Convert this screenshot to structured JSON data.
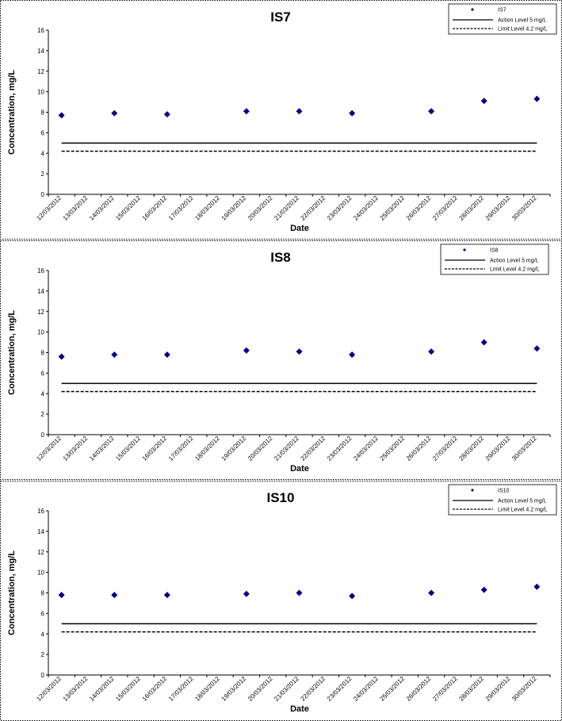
{
  "chart_data": [
    {
      "type": "scatter",
      "title": "IS7",
      "xlabel": "Date",
      "ylabel": "Concentration, mg/L",
      "ylim": [
        0,
        16
      ],
      "yticks": [
        0,
        2,
        4,
        6,
        8,
        10,
        12,
        14,
        16
      ],
      "categories": [
        "12/03/2012",
        "13/03/2012",
        "14/03/2012",
        "15/03/2012",
        "16/03/2012",
        "17/03/2012",
        "18/03/2012",
        "19/03/2012",
        "20/03/2012",
        "21/03/2012",
        "22/03/2012",
        "23/03/2012",
        "24/03/2012",
        "25/03/2012",
        "26/03/2012",
        "27/03/2012",
        "28/03/2012",
        "29/03/2012",
        "30/03/2012"
      ],
      "series": [
        {
          "name": "IS7",
          "marker": "diamond",
          "color": "#000080",
          "points": [
            [
              "12/03/2012",
              7.7
            ],
            [
              "14/03/2012",
              7.9
            ],
            [
              "16/03/2012",
              7.8
            ],
            [
              "19/03/2012",
              8.1
            ],
            [
              "21/03/2012",
              8.1
            ],
            [
              "23/03/2012",
              7.9
            ],
            [
              "26/03/2012",
              8.1
            ],
            [
              "28/03/2012",
              9.1
            ],
            [
              "30/03/2012",
              9.3
            ]
          ]
        }
      ],
      "reference_lines": [
        {
          "name": "Action Level 5 mg/L",
          "value": 5,
          "style": "solid",
          "color": "#000000"
        },
        {
          "name": "Limit Level 4.2 mg/L",
          "value": 4.2,
          "style": "dashed",
          "color": "#000000"
        }
      ],
      "legend": "top-right",
      "grid": false
    },
    {
      "type": "scatter",
      "title": "IS8",
      "xlabel": "Date",
      "ylabel": "Concentration, mg/L",
      "ylim": [
        0,
        16
      ],
      "yticks": [
        0,
        2,
        4,
        6,
        8,
        10,
        12,
        14,
        16
      ],
      "categories": [
        "12/03/2012",
        "13/03/2012",
        "14/03/2012",
        "15/03/2012",
        "16/03/2012",
        "17/03/2012",
        "18/03/2012",
        "19/03/2012",
        "20/03/2012",
        "21/03/2012",
        "22/03/2012",
        "23/03/2012",
        "24/03/2012",
        "25/03/2012",
        "26/03/2012",
        "27/03/2012",
        "28/03/2012",
        "29/03/2012",
        "30/03/2012"
      ],
      "series": [
        {
          "name": "IS8",
          "marker": "diamond",
          "color": "#000080",
          "points": [
            [
              "12/03/2012",
              7.6
            ],
            [
              "14/03/2012",
              7.8
            ],
            [
              "16/03/2012",
              7.8
            ],
            [
              "19/03/2012",
              8.2
            ],
            [
              "21/03/2012",
              8.1
            ],
            [
              "23/03/2012",
              7.8
            ],
            [
              "26/03/2012",
              8.1
            ],
            [
              "28/03/2012",
              9.0
            ],
            [
              "30/03/2012",
              8.4
            ]
          ]
        }
      ],
      "reference_lines": [
        {
          "name": "Action Level 5 mg/L",
          "value": 5,
          "style": "solid",
          "color": "#000000"
        },
        {
          "name": "Limit Level 4.2 mg/L",
          "value": 4.2,
          "style": "dashed",
          "color": "#000000"
        }
      ],
      "legend": "top-right",
      "grid": false
    },
    {
      "type": "scatter",
      "title": "IS10",
      "xlabel": "Date",
      "ylabel": "Concentration, mg/L",
      "ylim": [
        0,
        16
      ],
      "yticks": [
        0,
        2,
        4,
        6,
        8,
        10,
        12,
        14,
        16
      ],
      "categories": [
        "12/03/2012",
        "13/03/2012",
        "14/03/2012",
        "15/03/2012",
        "16/03/2012",
        "17/03/2012",
        "18/03/2012",
        "19/03/2012",
        "20/03/2012",
        "21/03/2012",
        "22/03/2012",
        "23/03/2012",
        "24/03/2012",
        "25/03/2012",
        "26/03/2012",
        "27/03/2012",
        "28/03/2012",
        "29/03/2012",
        "30/03/2012"
      ],
      "series": [
        {
          "name": "IS10",
          "marker": "diamond",
          "color": "#000080",
          "points": [
            [
              "12/03/2012",
              7.8
            ],
            [
              "14/03/2012",
              7.8
            ],
            [
              "16/03/2012",
              7.8
            ],
            [
              "19/03/2012",
              7.9
            ],
            [
              "21/03/2012",
              8.0
            ],
            [
              "23/03/2012",
              7.7
            ],
            [
              "26/03/2012",
              8.0
            ],
            [
              "28/03/2012",
              8.3
            ],
            [
              "30/03/2012",
              8.6
            ]
          ]
        }
      ],
      "reference_lines": [
        {
          "name": "Action Level 5 mg/L",
          "value": 5,
          "style": "solid",
          "color": "#000000"
        },
        {
          "name": "Limit Level 4.2 mg/L",
          "value": 4.2,
          "style": "dashed",
          "color": "#000000"
        }
      ],
      "legend": "top-right",
      "grid": false
    }
  ]
}
